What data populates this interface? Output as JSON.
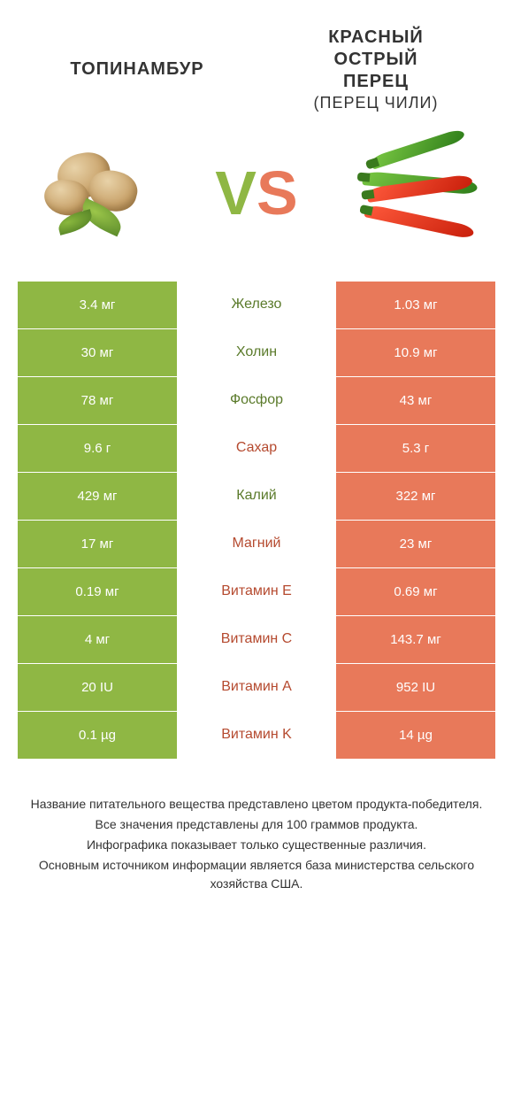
{
  "colors": {
    "left": "#8fb744",
    "right": "#e8795a",
    "left_dark": "#5a7a2a",
    "right_dark": "#b54a2f"
  },
  "header": {
    "left_title": "ТОПИНАМБУР",
    "right_title_line1": "КРАСНЫЙ",
    "right_title_line2": "ОСТРЫЙ",
    "right_title_line3": "ПЕРЕЦ",
    "right_title_sub": "(ПЕРЕЦ ЧИЛИ)",
    "vs_v": "V",
    "vs_s": "S"
  },
  "rows": [
    {
      "label": "Железо",
      "left": "3.4 мг",
      "right": "1.03 мг",
      "winner": "left"
    },
    {
      "label": "Холин",
      "left": "30 мг",
      "right": "10.9 мг",
      "winner": "left"
    },
    {
      "label": "Фосфор",
      "left": "78 мг",
      "right": "43 мг",
      "winner": "left"
    },
    {
      "label": "Сахар",
      "left": "9.6 г",
      "right": "5.3 г",
      "winner": "right"
    },
    {
      "label": "Калий",
      "left": "429 мг",
      "right": "322 мг",
      "winner": "left"
    },
    {
      "label": "Магний",
      "left": "17 мг",
      "right": "23 мг",
      "winner": "right"
    },
    {
      "label": "Витамин E",
      "left": "0.19 мг",
      "right": "0.69 мг",
      "winner": "right"
    },
    {
      "label": "Витамин C",
      "left": "4 мг",
      "right": "143.7 мг",
      "winner": "right"
    },
    {
      "label": "Витамин A",
      "left": "20 IU",
      "right": "952 IU",
      "winner": "right"
    },
    {
      "label": "Витамин K",
      "left": "0.1 µg",
      "right": "14 µg",
      "winner": "right"
    }
  ],
  "notes": [
    "Название питательного вещества представлено цветом продукта-победителя.",
    "Все значения представлены для 100 граммов продукта.",
    "Инфографика показывает только существенные различия.",
    "Основным источником информации является база министерства сельского хозяйства США."
  ]
}
